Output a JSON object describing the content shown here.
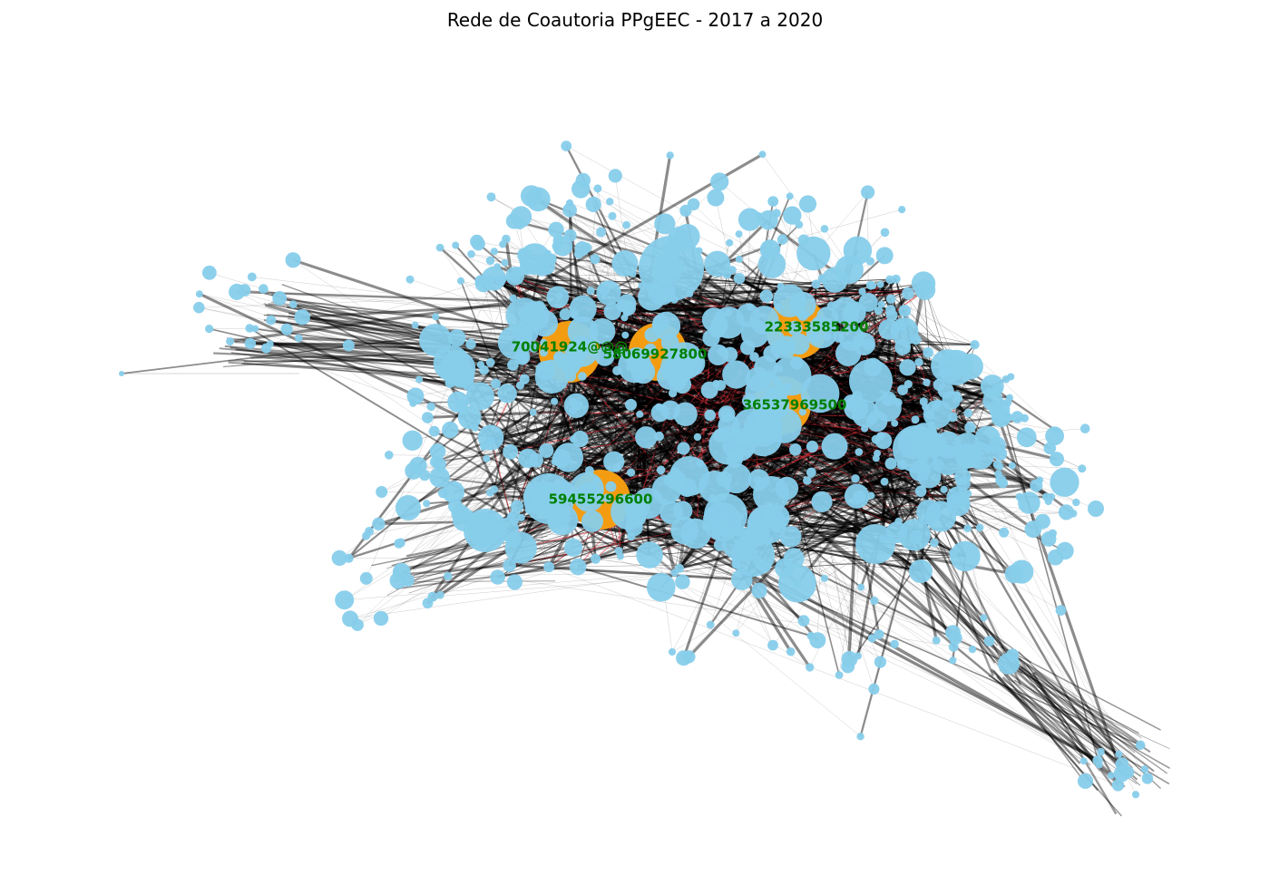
{
  "title": "Rede de Coautoria PPgEEC - 2017 a 2020",
  "colors": {
    "node": "#87CEEB",
    "hub_node": "#F39C12",
    "edge": "#000000",
    "highlight_edge": "#E0303A",
    "label": "#008000"
  },
  "hubs": [
    {
      "label": "70041924@@@"
    },
    {
      "label": "58069927800"
    },
    {
      "label": "22333585200"
    },
    {
      "label": "36537969500"
    },
    {
      "label": "59455296600"
    }
  ]
}
